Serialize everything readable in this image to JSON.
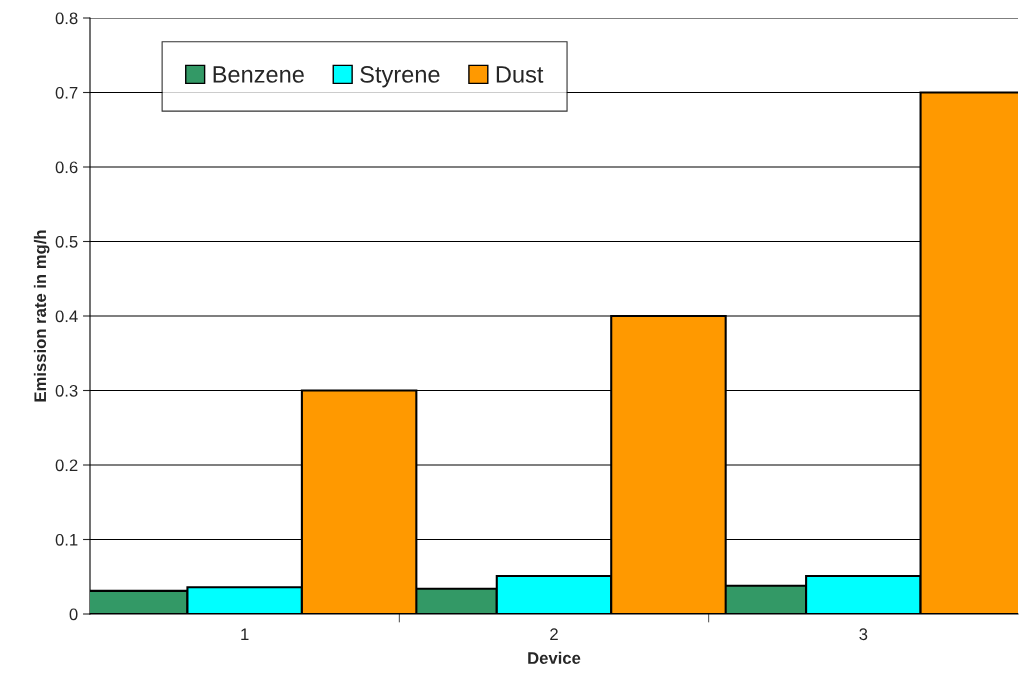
{
  "chart_data": {
    "type": "bar",
    "xlabel": "Device",
    "ylabel": "Emission rate in mg/h",
    "categories": [
      "1",
      "2",
      "3"
    ],
    "series": [
      {
        "name": "Benzene",
        "color": "#339966",
        "values": [
          0.031,
          0.034,
          0.038
        ]
      },
      {
        "name": "Styrene",
        "color": "#00ffff",
        "values": [
          0.036,
          0.051,
          0.051
        ]
      },
      {
        "name": "Dust",
        "color": "#ff9900",
        "values": [
          0.3,
          0.4,
          0.7
        ]
      }
    ],
    "ylim": [
      0,
      0.8
    ],
    "yticks": [
      {
        "value": 0,
        "label": "0"
      },
      0.1,
      0.2,
      0.3,
      0.4,
      0.5,
      0.6,
      0.7,
      0.8
    ],
    "grid": "y",
    "legend": "top left"
  }
}
